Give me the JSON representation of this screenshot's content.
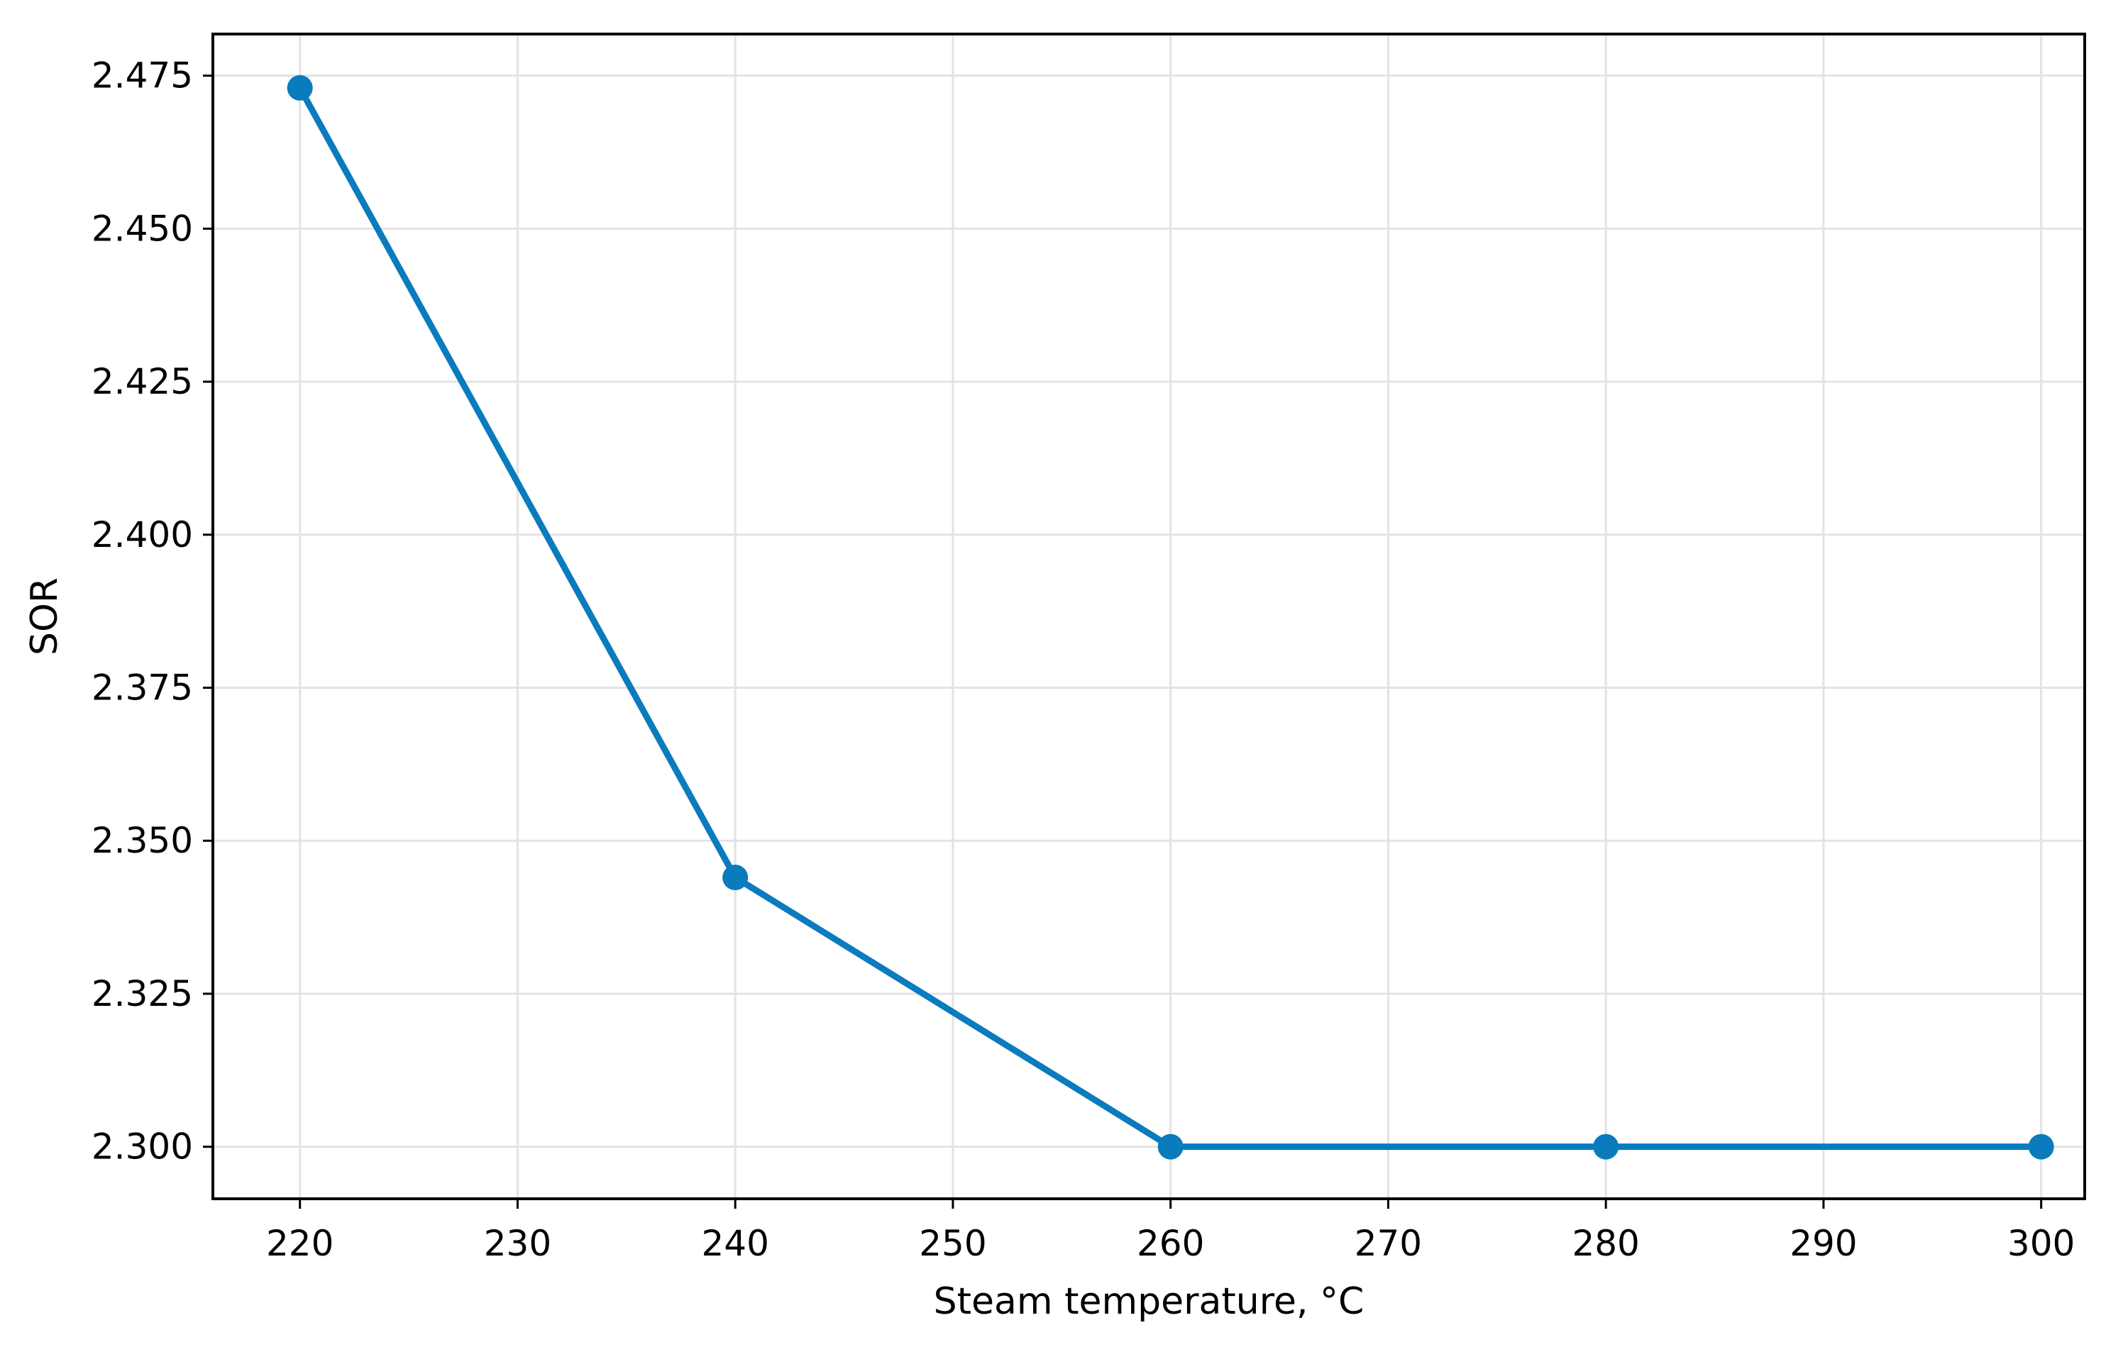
{
  "chart_data": {
    "type": "line",
    "xlabel": "Steam temperature, °C",
    "ylabel": "SOR",
    "x": [
      220,
      240,
      260,
      280,
      300
    ],
    "series": [
      {
        "values": [
          2.473,
          2.344,
          2.3,
          2.3,
          2.3
        ]
      }
    ],
    "xlim": [
      216,
      302
    ],
    "ylim": [
      2.2915,
      2.4818
    ],
    "xticks": [
      220,
      230,
      240,
      250,
      260,
      270,
      280,
      290,
      300
    ],
    "xtick_labels": [
      "220",
      "230",
      "240",
      "250",
      "260",
      "270",
      "280",
      "290",
      "300"
    ],
    "yticks": [
      2.3,
      2.325,
      2.35,
      2.375,
      2.4,
      2.425,
      2.45,
      2.475
    ],
    "ytick_labels": [
      "2.300",
      "2.325",
      "2.350",
      "2.375",
      "2.400",
      "2.425",
      "2.450",
      "2.475"
    ],
    "grid": true,
    "legend": "none",
    "colors": {
      "series": "#0a7bbd",
      "grid": "#e3e3e3",
      "axis": "#000000"
    }
  }
}
